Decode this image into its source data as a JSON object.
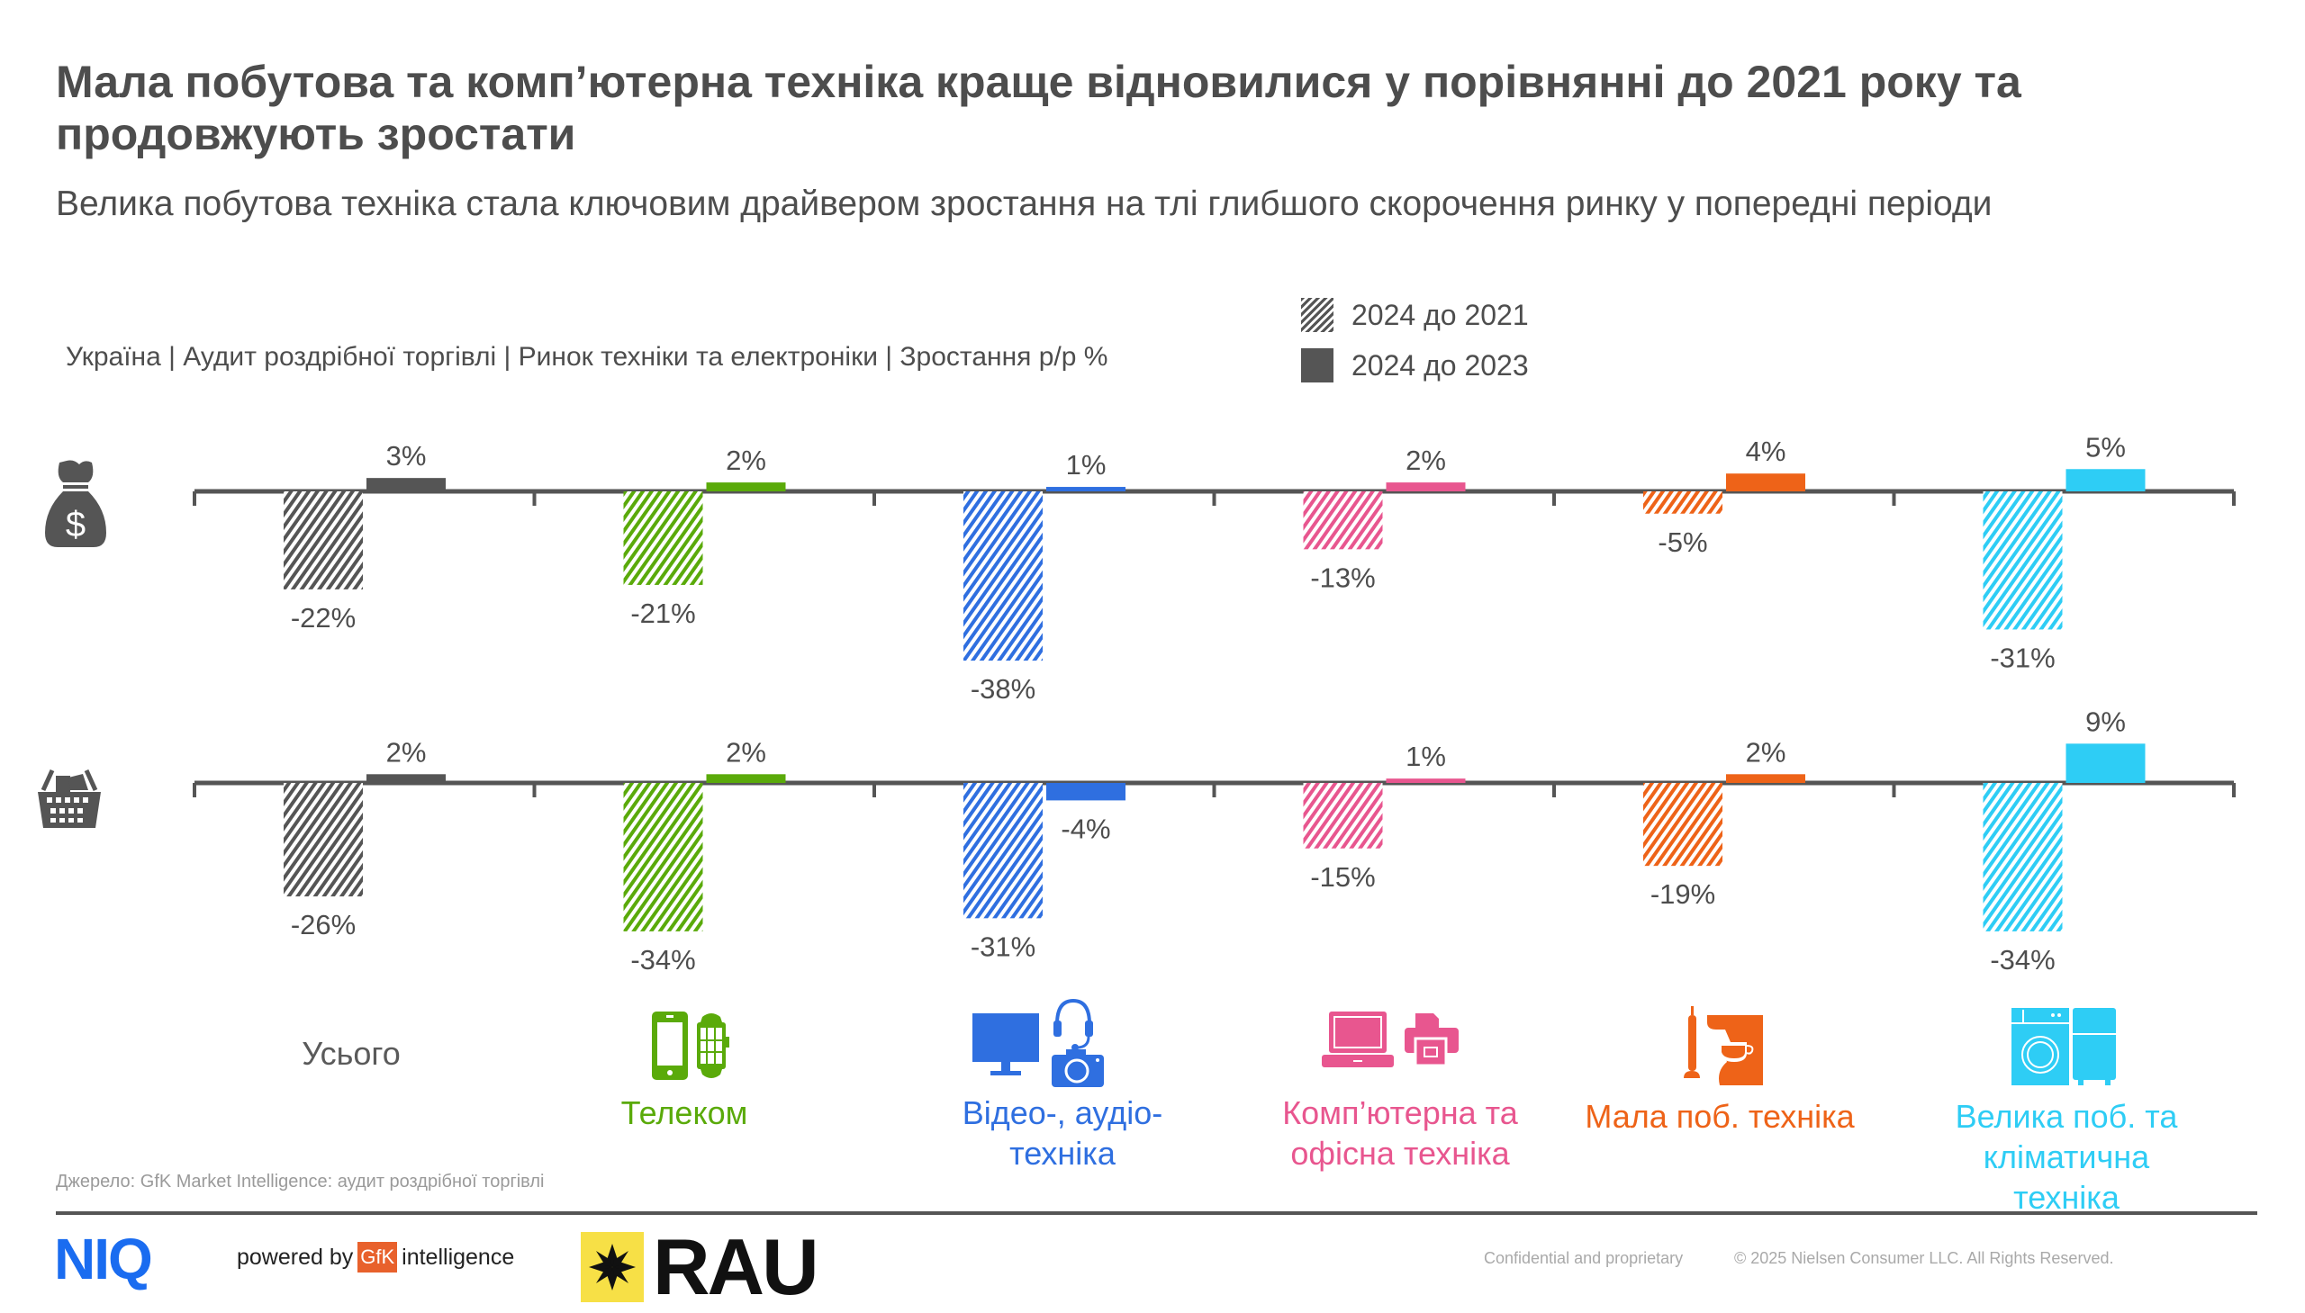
{
  "header": {
    "title": "Мала побутова та комп’ютерна техніка краще відновилися у порівнянні до 2021 року та продовжують зростати",
    "subtitle": "Велика побутова техніка стала ключовим драйвером зростання на тлі глибшого скорочення ринку у попередні періоди",
    "context": "Україна | Аудит роздрібної торгівлі | Ринок техніки та електроніки | Зростання р/р %"
  },
  "legend": {
    "items": [
      {
        "label": "2024 до 2021",
        "style": "hatched"
      },
      {
        "label": "2024 до 2023",
        "style": "solid"
      }
    ]
  },
  "rows": [
    {
      "name": "value",
      "icon": "money-bag-icon"
    },
    {
      "name": "units",
      "icon": "shopping-basket-icon"
    }
  ],
  "categories": [
    {
      "label": "Усього",
      "color": "#555555",
      "icon": "none"
    },
    {
      "label": "Телеком",
      "color": "#5aaa0a",
      "icon": "phone-watch-icon"
    },
    {
      "label": "Відео-, аудіо-техніка",
      "color": "#2f6fe0",
      "icon": "monitor-headset-camera-icon"
    },
    {
      "label": "Комп’ютерна та офісна техніка",
      "color": "#e8568f",
      "icon": "laptop-printer-icon"
    },
    {
      "label": "Мала поб. техніка",
      "color": "#ee6318",
      "icon": "vacuum-coffee-icon"
    },
    {
      "label": "Велика поб. та кліматична техніка",
      "color": "#2ecdf5",
      "icon": "washer-fridge-icon"
    }
  ],
  "chart_data": [
    {
      "type": "bar",
      "title": "Value growth (money)",
      "categories": [
        "Усього",
        "Телеком",
        "Відео-, аудіо-техніка",
        "Комп’ютерна та офісна техніка",
        "Мала поб. техніка",
        "Велика поб. та кліматична техніка"
      ],
      "series": [
        {
          "name": "2024 до 2021",
          "values": [
            -22,
            -21,
            -38,
            -13,
            -5,
            -31
          ],
          "labels": [
            "-22%",
            "-21%",
            "-38%",
            "-13%",
            "-5%",
            "-31%"
          ]
        },
        {
          "name": "2024 до 2023",
          "values": [
            3,
            2,
            1,
            2,
            4,
            5
          ],
          "labels": [
            "3%",
            "2%",
            "1%",
            "2%",
            "4%",
            "5%"
          ]
        }
      ],
      "ylabel": "Зростання р/р %",
      "grid": false
    },
    {
      "type": "bar",
      "title": "Units growth (basket)",
      "categories": [
        "Усього",
        "Телеком",
        "Відео-, аудіо-техніка",
        "Комп’ютерна та офісна техніка",
        "Мала поб. техніка",
        "Велика поб. та кліматична техніка"
      ],
      "series": [
        {
          "name": "2024 до 2021",
          "values": [
            -26,
            -34,
            -31,
            -15,
            -19,
            -34
          ],
          "labels": [
            "-26%",
            "-34%",
            "-31%",
            "-15%",
            "-19%",
            "-34%"
          ]
        },
        {
          "name": "2024 до 2023",
          "values": [
            2,
            2,
            -4,
            1,
            2,
            9
          ],
          "labels": [
            "2%",
            "2%",
            "-4%",
            "1%",
            "2%",
            "9%"
          ]
        }
      ],
      "ylabel": "Зростання р/р %",
      "grid": false
    }
  ],
  "footer": {
    "source": "Джерело: GfK Market Intelligence: аудит роздрібної торгівлі",
    "niq": "NIQ",
    "powered_by": "powered by",
    "gfk": "GfK",
    "intelligence": "intelligence",
    "rau": "RAU",
    "confidential": "Confidential and proprietary",
    "copyright": "© 2025 Nielsen Consumer LLC. All Rights Reserved."
  }
}
